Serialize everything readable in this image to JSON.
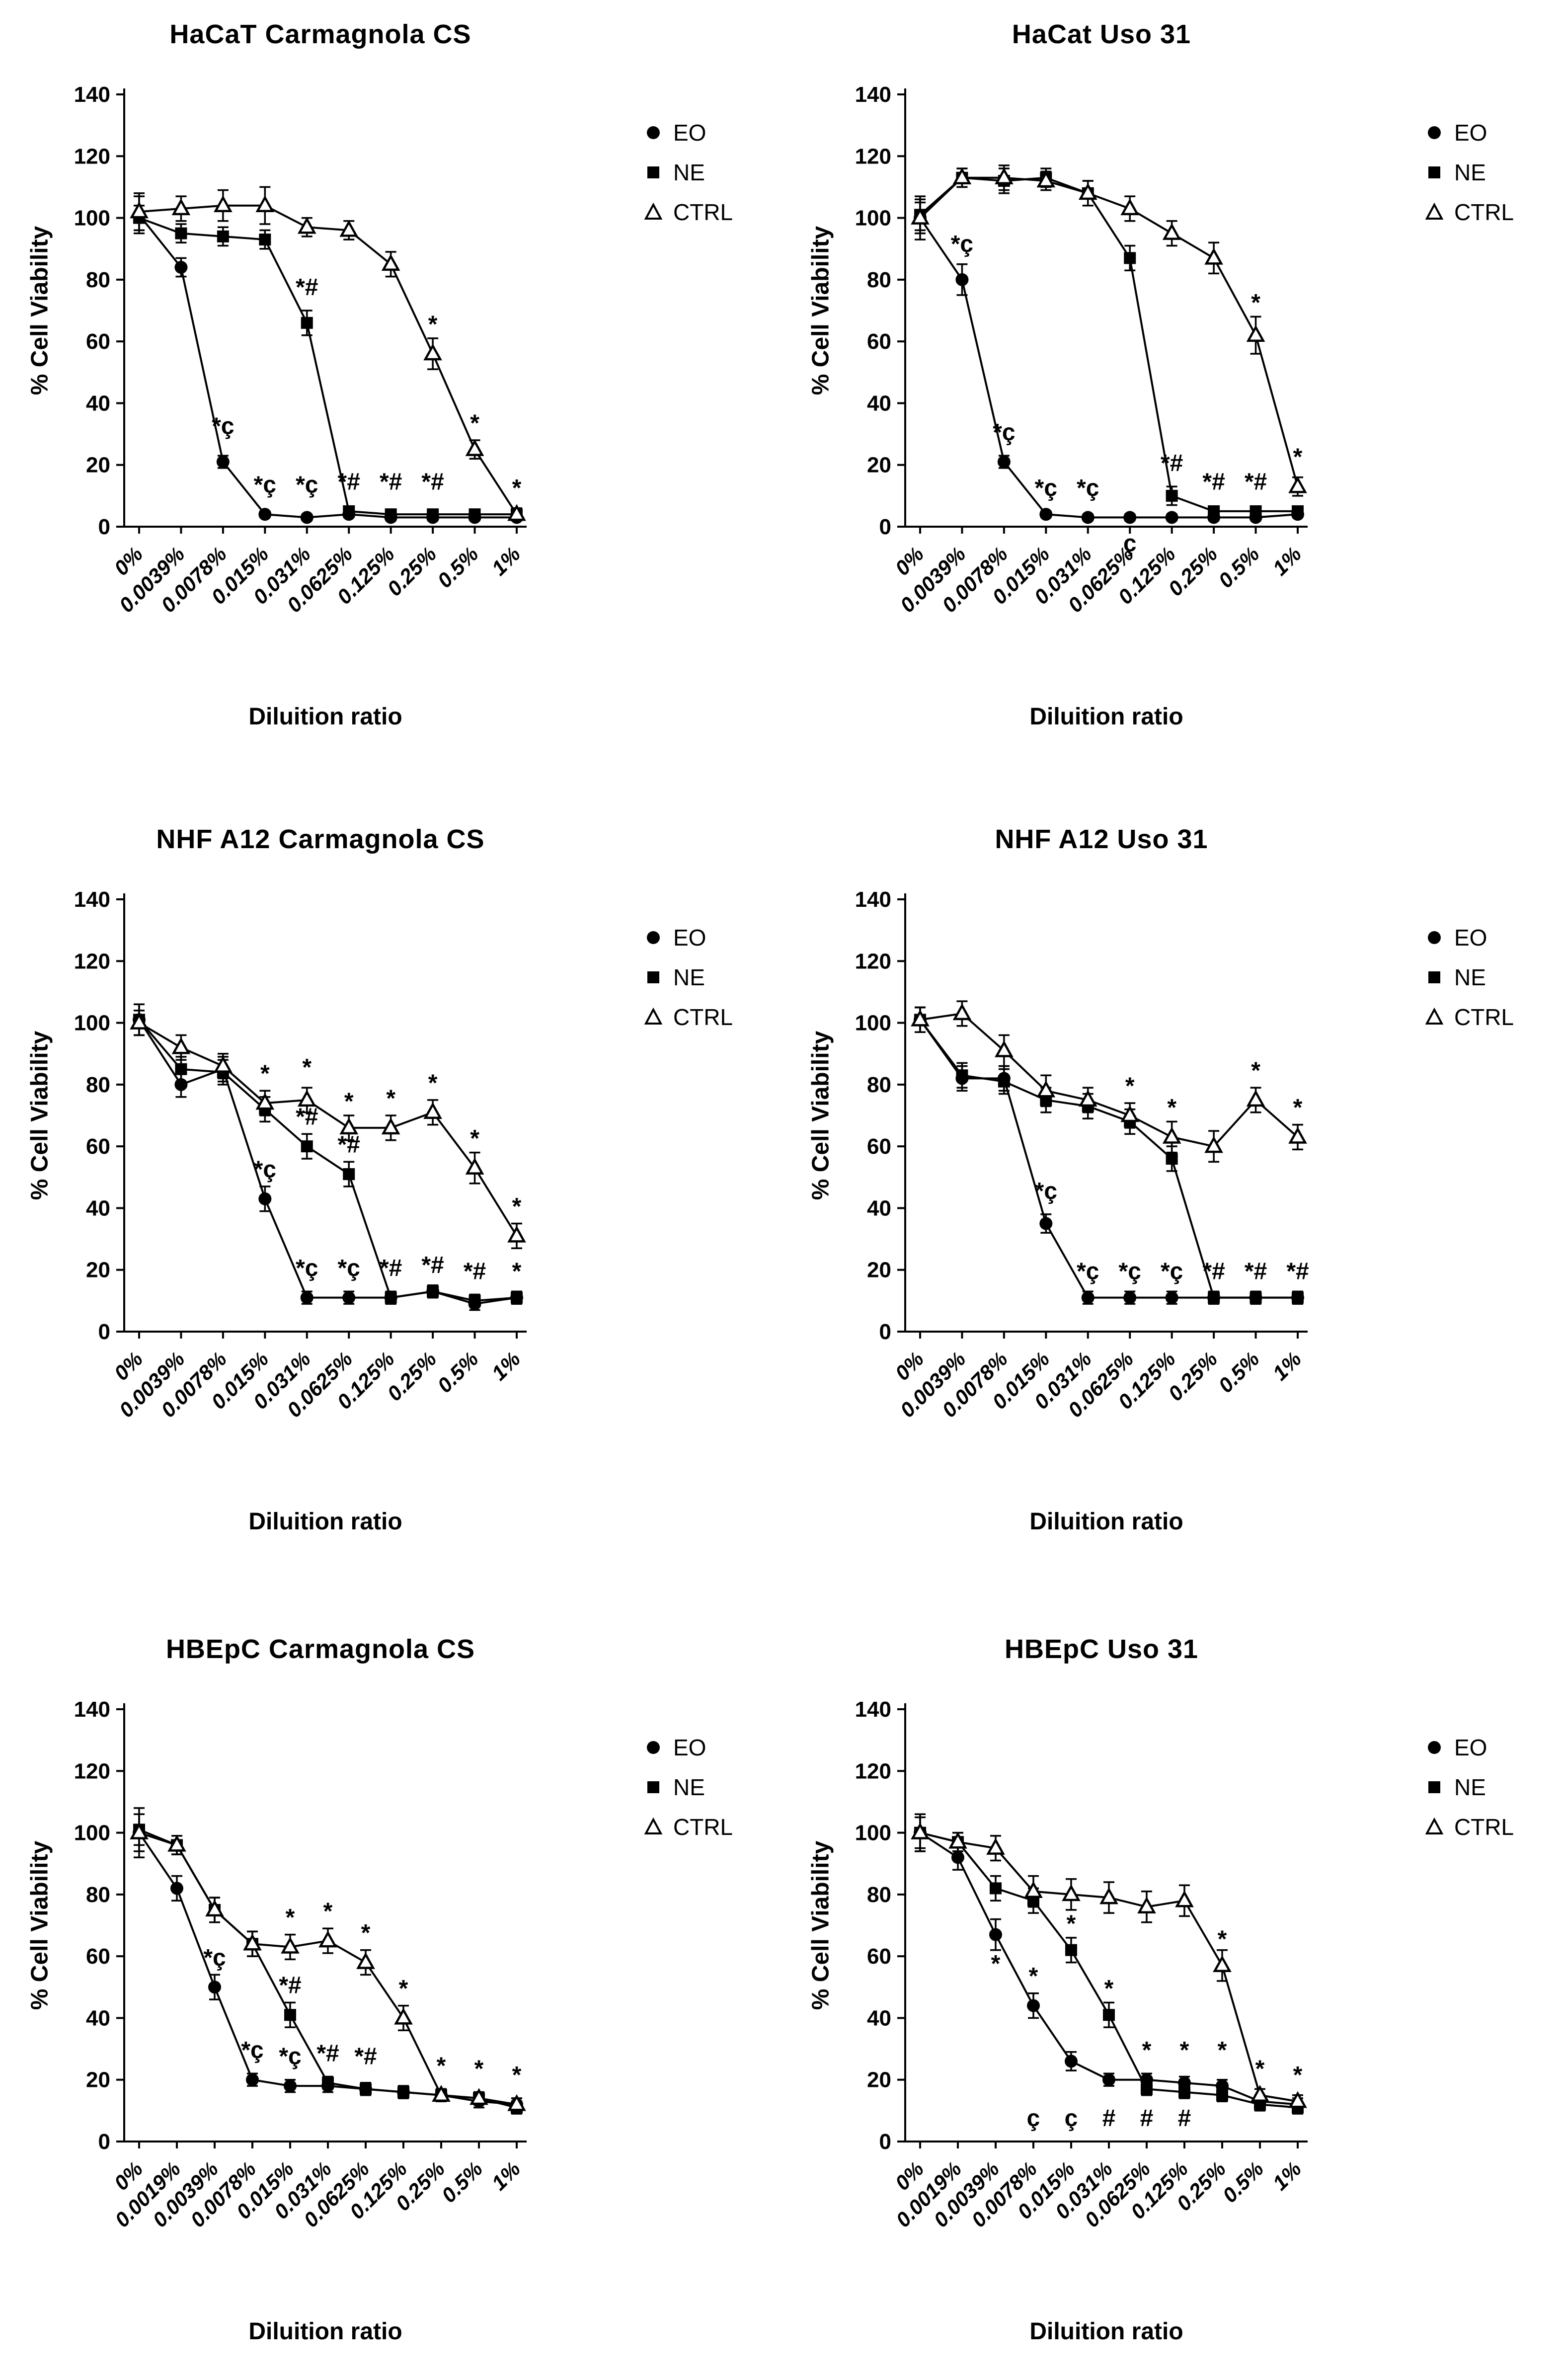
{
  "figure": {
    "ylabel": "% Cell Viability",
    "xlabel": "Diluition ratio",
    "legend_labels": [
      "EO",
      "NE",
      "CTRL"
    ],
    "color": "#000000",
    "background": "#ffffff"
  },
  "chart_data": [
    {
      "type": "line",
      "title": "HaCaT Carmagnola CS",
      "xlabel": "Diluition ratio",
      "ylabel": "% Cell Viability",
      "ylim": [
        0,
        140
      ],
      "yticks": [
        0,
        20,
        40,
        60,
        80,
        100,
        120,
        140
      ],
      "legend_position": "right",
      "grid": false,
      "categories": [
        "0%",
        "0.0039%",
        "0.0078%",
        "0.015%",
        "0.031%",
        "0.0625%",
        "0.125%",
        "0.25%",
        "0.5%",
        "1%"
      ],
      "series": [
        {
          "name": "EO",
          "marker": "circle-filled",
          "values": [
            101,
            84,
            21,
            4,
            3,
            4,
            3,
            3,
            3,
            3
          ],
          "errors": [
            6,
            3,
            2,
            1,
            1,
            1,
            1,
            1,
            1,
            1
          ]
        },
        {
          "name": "NE",
          "marker": "square-filled",
          "values": [
            100,
            95,
            94,
            93,
            66,
            5,
            4,
            4,
            4,
            4
          ],
          "errors": [
            4,
            3,
            3,
            3,
            4,
            1,
            1,
            1,
            1,
            1
          ]
        },
        {
          "name": "CTRL",
          "marker": "triangle-open",
          "values": [
            102,
            103,
            104,
            104,
            97,
            96,
            85,
            56,
            25,
            4
          ],
          "errors": [
            6,
            4,
            5,
            6,
            3,
            3,
            4,
            5,
            3,
            2
          ]
        }
      ],
      "annotations": [
        {
          "text": "*ç",
          "x": 2,
          "y": 30
        },
        {
          "text": "*ç",
          "x": 3,
          "y": 11
        },
        {
          "text": "*ç",
          "x": 4,
          "y": 11
        },
        {
          "text": "*#",
          "x": 4,
          "y": 75
        },
        {
          "text": "*#",
          "x": 5,
          "y": 12
        },
        {
          "text": "*#",
          "x": 6,
          "y": 12
        },
        {
          "text": "*#",
          "x": 7,
          "y": 12
        },
        {
          "text": "*",
          "x": 7,
          "y": 63
        },
        {
          "text": "*",
          "x": 8,
          "y": 31
        },
        {
          "text": "*",
          "x": 9,
          "y": 10
        }
      ]
    },
    {
      "type": "line",
      "title": "HaCat Uso 31",
      "xlabel": "Diluition ratio",
      "ylabel": "% Cell Viability",
      "ylim": [
        0,
        140
      ],
      "yticks": [
        0,
        20,
        40,
        60,
        80,
        100,
        120,
        140
      ],
      "legend_position": "right",
      "grid": false,
      "categories": [
        "0%",
        "0.0039%",
        "0.0078%",
        "0.015%",
        "0.031%",
        "0.0625%",
        "0.125%",
        "0.25%",
        "0.5%",
        "1%"
      ],
      "series": [
        {
          "name": "EO",
          "marker": "circle-filled",
          "values": [
            100,
            80,
            21,
            4,
            3,
            3,
            3,
            3,
            3,
            4
          ],
          "errors": [
            7,
            5,
            2,
            1,
            1,
            1,
            1,
            1,
            1,
            1
          ]
        },
        {
          "name": "NE",
          "marker": "square-filled",
          "values": [
            101,
            113,
            112,
            113,
            108,
            87,
            10,
            5,
            5,
            5
          ],
          "errors": [
            5,
            3,
            4,
            3,
            4,
            4,
            3,
            1,
            1,
            1
          ]
        },
        {
          "name": "CTRL",
          "marker": "triangle-open",
          "values": [
            100,
            113,
            113,
            112,
            108,
            103,
            95,
            87,
            62,
            13
          ],
          "errors": [
            5,
            3,
            4,
            3,
            4,
            4,
            4,
            5,
            6,
            3
          ]
        }
      ],
      "annotations": [
        {
          "text": "*ç",
          "x": 1,
          "y": 89
        },
        {
          "text": "*ç",
          "x": 2,
          "y": 28
        },
        {
          "text": "*ç",
          "x": 3,
          "y": 10
        },
        {
          "text": "*ç",
          "x": 4,
          "y": 10
        },
        {
          "text": "ç",
          "x": 5,
          "y": -8
        },
        {
          "text": "*#",
          "x": 6,
          "y": 18
        },
        {
          "text": "*#",
          "x": 7,
          "y": 12
        },
        {
          "text": "*#",
          "x": 8,
          "y": 12
        },
        {
          "text": "*",
          "x": 8,
          "y": 70
        },
        {
          "text": "*",
          "x": 9,
          "y": 20
        }
      ]
    },
    {
      "type": "line",
      "title": "NHF A12 Carmagnola CS",
      "xlabel": "Diluition ratio",
      "ylabel": "% Cell Viability",
      "ylim": [
        0,
        140
      ],
      "yticks": [
        0,
        20,
        40,
        60,
        80,
        100,
        120,
        140
      ],
      "legend_position": "right",
      "grid": false,
      "categories": [
        "0%",
        "0.0039%",
        "0.0078%",
        "0.015%",
        "0.031%",
        "0.0625%",
        "0.125%",
        "0.25%",
        "0.5%",
        "1%"
      ],
      "series": [
        {
          "name": "EO",
          "marker": "circle-filled",
          "values": [
            101,
            80,
            85,
            43,
            11,
            11,
            11,
            13,
            9,
            11
          ],
          "errors": [
            5,
            4,
            4,
            4,
            2,
            2,
            2,
            2,
            2,
            2
          ]
        },
        {
          "name": "NE",
          "marker": "square-filled",
          "values": [
            101,
            85,
            84,
            72,
            60,
            51,
            11,
            13,
            10,
            11
          ],
          "errors": [
            5,
            4,
            4,
            4,
            4,
            4,
            2,
            2,
            2,
            2
          ]
        },
        {
          "name": "CTRL",
          "marker": "triangle-open",
          "values": [
            100,
            92,
            86,
            74,
            75,
            66,
            66,
            71,
            53,
            31
          ],
          "errors": [
            4,
            4,
            4,
            4,
            4,
            4,
            4,
            4,
            5,
            4
          ]
        }
      ],
      "annotations": [
        {
          "text": "*",
          "x": 3,
          "y": 81
        },
        {
          "text": "*ç",
          "x": 3,
          "y": 50
        },
        {
          "text": "*",
          "x": 4,
          "y": 83
        },
        {
          "text": "*#",
          "x": 4,
          "y": 67
        },
        {
          "text": "*ç",
          "x": 4,
          "y": 18
        },
        {
          "text": "*",
          "x": 5,
          "y": 72
        },
        {
          "text": "*#",
          "x": 5,
          "y": 58
        },
        {
          "text": "*ç",
          "x": 5,
          "y": 18
        },
        {
          "text": "*",
          "x": 6,
          "y": 73
        },
        {
          "text": "*#",
          "x": 6,
          "y": 18
        },
        {
          "text": "*",
          "x": 7,
          "y": 78
        },
        {
          "text": "*#",
          "x": 7,
          "y": 19
        },
        {
          "text": "*",
          "x": 8,
          "y": 60
        },
        {
          "text": "*#",
          "x": 8,
          "y": 17
        },
        {
          "text": "*",
          "x": 9,
          "y": 38
        },
        {
          "text": "*",
          "x": 9,
          "y": 17
        }
      ]
    },
    {
      "type": "line",
      "title": "NHF A12 Uso 31",
      "xlabel": "Diluition ratio",
      "ylabel": "% Cell Viability",
      "ylim": [
        0,
        140
      ],
      "yticks": [
        0,
        20,
        40,
        60,
        80,
        100,
        120,
        140
      ],
      "legend_position": "right",
      "grid": false,
      "categories": [
        "0%",
        "0.0039%",
        "0.0078%",
        "0.015%",
        "0.031%",
        "0.0625%",
        "0.125%",
        "0.25%",
        "0.5%",
        "1%"
      ],
      "series": [
        {
          "name": "EO",
          "marker": "circle-filled",
          "values": [
            101,
            82,
            82,
            35,
            11,
            11,
            11,
            11,
            11,
            11
          ],
          "errors": [
            4,
            4,
            4,
            3,
            2,
            2,
            2,
            2,
            2,
            2
          ]
        },
        {
          "name": "NE",
          "marker": "square-filled",
          "values": [
            101,
            83,
            81,
            75,
            73,
            68,
            56,
            11,
            11,
            11
          ],
          "errors": [
            4,
            4,
            4,
            4,
            4,
            4,
            4,
            2,
            2,
            2
          ]
        },
        {
          "name": "CTRL",
          "marker": "triangle-open",
          "values": [
            101,
            103,
            91,
            78,
            75,
            70,
            63,
            60,
            75,
            63
          ],
          "errors": [
            4,
            4,
            5,
            5,
            4,
            4,
            5,
            5,
            4,
            4
          ]
        }
      ],
      "annotations": [
        {
          "text": "*ç",
          "x": 3,
          "y": 43
        },
        {
          "text": "*ç",
          "x": 4,
          "y": 17
        },
        {
          "text": "*",
          "x": 5,
          "y": 77
        },
        {
          "text": "*ç",
          "x": 5,
          "y": 17
        },
        {
          "text": "*",
          "x": 6,
          "y": 70
        },
        {
          "text": "*ç",
          "x": 6,
          "y": 17
        },
        {
          "text": "*#",
          "x": 7,
          "y": 17
        },
        {
          "text": "*",
          "x": 8,
          "y": 82
        },
        {
          "text": "*#",
          "x": 8,
          "y": 17
        },
        {
          "text": "*",
          "x": 9,
          "y": 70
        },
        {
          "text": "*#",
          "x": 9,
          "y": 17
        }
      ]
    },
    {
      "type": "line",
      "title": "HBEpC Carmagnola CS",
      "xlabel": "Diluition ratio",
      "ylabel": "% Cell Viability",
      "ylim": [
        0,
        140
      ],
      "yticks": [
        0,
        20,
        40,
        60,
        80,
        100,
        120,
        140
      ],
      "legend_position": "right",
      "grid": false,
      "categories": [
        "0%",
        "0.0019%",
        "0.0039%",
        "0.0078%",
        "0.015%",
        "0.031%",
        "0.0625%",
        "0.125%",
        "0.25%",
        "0.5%",
        "1%"
      ],
      "series": [
        {
          "name": "EO",
          "marker": "circle-filled",
          "values": [
            100,
            82,
            50,
            20,
            18,
            18,
            17,
            16,
            15,
            13,
            12
          ],
          "errors": [
            8,
            4,
            4,
            2,
            2,
            2,
            2,
            2,
            2,
            2,
            2
          ]
        },
        {
          "name": "NE",
          "marker": "square-filled",
          "values": [
            101,
            96,
            75,
            64,
            41,
            19,
            17,
            16,
            15,
            14,
            11
          ],
          "errors": [
            5,
            3,
            4,
            4,
            4,
            2,
            2,
            2,
            2,
            2,
            2
          ]
        },
        {
          "name": "CTRL",
          "marker": "triangle-open",
          "values": [
            100,
            96,
            75,
            64,
            63,
            65,
            58,
            40,
            15,
            14,
            12
          ],
          "errors": [
            6,
            3,
            4,
            4,
            4,
            4,
            4,
            4,
            2,
            2,
            2
          ]
        }
      ],
      "annotations": [
        {
          "text": "*ç",
          "x": 2,
          "y": 57
        },
        {
          "text": "*ç",
          "x": 3,
          "y": 27
        },
        {
          "text": "*",
          "x": 4,
          "y": 70
        },
        {
          "text": "*#",
          "x": 4,
          "y": 48
        },
        {
          "text": "*ç",
          "x": 4,
          "y": 25
        },
        {
          "text": "*",
          "x": 5,
          "y": 72
        },
        {
          "text": "*#",
          "x": 5,
          "y": 26
        },
        {
          "text": "*",
          "x": 6,
          "y": 65
        },
        {
          "text": "*#",
          "x": 6,
          "y": 25
        },
        {
          "text": "*",
          "x": 7,
          "y": 47
        },
        {
          "text": "*",
          "x": 8,
          "y": 22
        },
        {
          "text": "*",
          "x": 9,
          "y": 21
        },
        {
          "text": "*",
          "x": 10,
          "y": 19
        }
      ]
    },
    {
      "type": "line",
      "title": "HBEpC Uso 31",
      "xlabel": "Diluition ratio",
      "ylabel": "% Cell Viability",
      "ylim": [
        0,
        140
      ],
      "yticks": [
        0,
        20,
        40,
        60,
        80,
        100,
        120,
        140
      ],
      "legend_position": "right",
      "grid": false,
      "categories": [
        "0%",
        "0.0019%",
        "0.0039%",
        "0.0078%",
        "0.015%",
        "0.031%",
        "0.0625%",
        "0.125%",
        "0.25%",
        "0.5%",
        "1%"
      ],
      "series": [
        {
          "name": "EO",
          "marker": "circle-filled",
          "values": [
            100,
            92,
            67,
            44,
            26,
            20,
            20,
            19,
            18,
            13,
            12
          ],
          "errors": [
            6,
            4,
            5,
            4,
            3,
            2,
            2,
            2,
            2,
            2,
            2
          ]
        },
        {
          "name": "NE",
          "marker": "square-filled",
          "values": [
            100,
            97,
            82,
            78,
            62,
            41,
            17,
            16,
            15,
            12,
            11
          ],
          "errors": [
            5,
            3,
            4,
            4,
            4,
            4,
            2,
            2,
            2,
            2,
            2
          ]
        },
        {
          "name": "CTRL",
          "marker": "triangle-open",
          "values": [
            100,
            97,
            95,
            81,
            80,
            79,
            76,
            78,
            57,
            15,
            13
          ],
          "errors": [
            6,
            3,
            4,
            5,
            5,
            5,
            5,
            5,
            5,
            2,
            2
          ]
        }
      ],
      "annotations": [
        {
          "text": "*",
          "x": 2,
          "y": 55
        },
        {
          "text": "*",
          "x": 3,
          "y": 51
        },
        {
          "text": "ç",
          "x": 3,
          "y": 5
        },
        {
          "text": "*",
          "x": 4,
          "y": 68
        },
        {
          "text": "ç",
          "x": 4,
          "y": 5
        },
        {
          "text": "*",
          "x": 5,
          "y": 47
        },
        {
          "text": "#",
          "x": 5,
          "y": 5
        },
        {
          "text": "*",
          "x": 6,
          "y": 27
        },
        {
          "text": "#",
          "x": 6,
          "y": 5
        },
        {
          "text": "*",
          "x": 7,
          "y": 27
        },
        {
          "text": "#",
          "x": 7,
          "y": 5
        },
        {
          "text": "*",
          "x": 8,
          "y": 27
        },
        {
          "text": "*",
          "x": 8,
          "y": 63
        },
        {
          "text": "*",
          "x": 9,
          "y": 21
        },
        {
          "text": "*",
          "x": 10,
          "y": 19
        }
      ]
    }
  ]
}
